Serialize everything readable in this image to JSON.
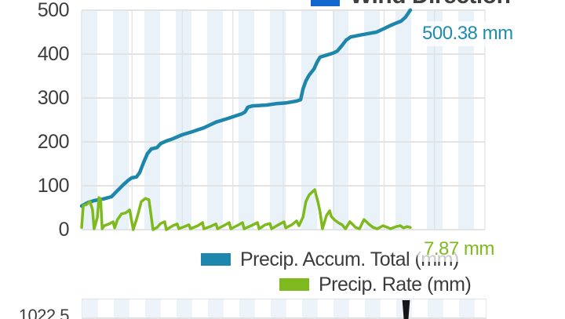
{
  "wind_legend": {
    "label": "Wind Direction",
    "swatch_color": "#1367cd"
  },
  "precip_chart": {
    "y_axis": {
      "labels": [
        "500",
        "400",
        "300",
        "200",
        "100",
        "0"
      ]
    },
    "annotations": {
      "accum_value": "500.38 mm",
      "rate_value": "7.87 mm"
    },
    "legend": [
      {
        "label": "Precip. Accum. Total (mm)",
        "color": "#1f87ad"
      },
      {
        "label": "Precip. Rate (mm)",
        "color": "#7eba1e"
      }
    ],
    "colors": {
      "accum_line": "#1e86aa",
      "rate_line": "#7eba1e",
      "accum_value_text": "#1e8cad",
      "rate_value_text": "#7eba1e",
      "band_stripe": "#e9f1f9",
      "h_gridline": "#e3e3e3",
      "v_gridline": "#dfe3e9"
    }
  },
  "pressure_chart": {
    "y_axis_label": "1022.5",
    "cursor_color": "#151515"
  },
  "chart_data": [
    {
      "type": "line",
      "title": "",
      "xlabel": "",
      "ylabel": "",
      "ylim": [
        0,
        500
      ],
      "y_ticks": [
        500,
        400,
        300,
        200,
        100,
        0
      ],
      "grid": true,
      "legend_position": "bottom",
      "x_axis_note": "time axis labels are cropped out of the screenshot; x given as fraction of plot width",
      "series": [
        {
          "name": "Precip. Accum. Total (mm)",
          "color": "#1e86aa",
          "stroke_width": 4.5,
          "axis": "left (0-500 mm)",
          "current_value_label": "500.38 mm",
          "points": [
            [
              0.0,
              54
            ],
            [
              0.016,
              62
            ],
            [
              0.031,
              66
            ],
            [
              0.054,
              70
            ],
            [
              0.074,
              75
            ],
            [
              0.089,
              89
            ],
            [
              0.103,
              102
            ],
            [
              0.115,
              112
            ],
            [
              0.124,
              118
            ],
            [
              0.136,
              120
            ],
            [
              0.144,
              130
            ],
            [
              0.154,
              154
            ],
            [
              0.163,
              173
            ],
            [
              0.173,
              184
            ],
            [
              0.187,
              187
            ],
            [
              0.196,
              196
            ],
            [
              0.21,
              202
            ],
            [
              0.226,
              207
            ],
            [
              0.249,
              216
            ],
            [
              0.274,
              223
            ],
            [
              0.303,
              232
            ],
            [
              0.333,
              245
            ],
            [
              0.358,
              252
            ],
            [
              0.381,
              259
            ],
            [
              0.397,
              264
            ],
            [
              0.405,
              268
            ],
            [
              0.412,
              279
            ],
            [
              0.424,
              282
            ],
            [
              0.459,
              284
            ],
            [
              0.482,
              287
            ],
            [
              0.508,
              289
            ],
            [
              0.533,
              293
            ],
            [
              0.543,
              296
            ],
            [
              0.549,
              321
            ],
            [
              0.556,
              339
            ],
            [
              0.564,
              352
            ],
            [
              0.576,
              366
            ],
            [
              0.584,
              382
            ],
            [
              0.591,
              393
            ],
            [
              0.605,
              397
            ],
            [
              0.623,
              402
            ],
            [
              0.634,
              407
            ],
            [
              0.646,
              420
            ],
            [
              0.656,
              432
            ],
            [
              0.667,
              439
            ],
            [
              0.689,
              443
            ],
            [
              0.712,
              447
            ],
            [
              0.731,
              450
            ],
            [
              0.747,
              457
            ],
            [
              0.763,
              464
            ],
            [
              0.778,
              470
            ],
            [
              0.792,
              475
            ],
            [
              0.803,
              484
            ],
            [
              0.811,
              495
            ],
            [
              0.815,
              500.38
            ]
          ]
        },
        {
          "name": "Precip. Rate (mm)",
          "color": "#7eba1e",
          "stroke_width": 3.5,
          "axis": "secondary (scale not shown); values below read against the left 0-500 axis as plotted",
          "current_value_label": "7.87 mm",
          "points": [
            [
              0.0,
              5
            ],
            [
              0.004,
              55
            ],
            [
              0.012,
              57
            ],
            [
              0.021,
              64
            ],
            [
              0.027,
              45
            ],
            [
              0.031,
              2
            ],
            [
              0.039,
              27
            ],
            [
              0.043,
              73
            ],
            [
              0.047,
              69
            ],
            [
              0.051,
              2
            ],
            [
              0.056,
              9
            ],
            [
              0.068,
              13
            ],
            [
              0.078,
              18
            ],
            [
              0.082,
              4
            ],
            [
              0.089,
              23
            ],
            [
              0.099,
              36
            ],
            [
              0.109,
              38
            ],
            [
              0.119,
              45
            ],
            [
              0.128,
              0
            ],
            [
              0.138,
              29
            ],
            [
              0.148,
              64
            ],
            [
              0.158,
              71
            ],
            [
              0.167,
              68
            ],
            [
              0.177,
              0
            ],
            [
              0.187,
              5
            ],
            [
              0.196,
              14
            ],
            [
              0.206,
              18
            ],
            [
              0.21,
              0
            ],
            [
              0.226,
              9
            ],
            [
              0.237,
              13
            ],
            [
              0.241,
              2
            ],
            [
              0.255,
              7
            ],
            [
              0.266,
              11
            ],
            [
              0.27,
              2
            ],
            [
              0.288,
              9
            ],
            [
              0.3,
              16
            ],
            [
              0.303,
              2
            ],
            [
              0.319,
              7
            ],
            [
              0.333,
              13
            ],
            [
              0.337,
              2
            ],
            [
              0.352,
              9
            ],
            [
              0.366,
              16
            ],
            [
              0.37,
              2
            ],
            [
              0.385,
              9
            ],
            [
              0.399,
              16
            ],
            [
              0.403,
              2
            ],
            [
              0.42,
              9
            ],
            [
              0.436,
              16
            ],
            [
              0.44,
              2
            ],
            [
              0.455,
              11
            ],
            [
              0.467,
              14
            ],
            [
              0.471,
              2
            ],
            [
              0.488,
              11
            ],
            [
              0.502,
              18
            ],
            [
              0.506,
              4
            ],
            [
              0.521,
              11
            ],
            [
              0.533,
              20
            ],
            [
              0.539,
              9
            ],
            [
              0.549,
              29
            ],
            [
              0.556,
              64
            ],
            [
              0.564,
              79
            ],
            [
              0.572,
              86
            ],
            [
              0.578,
              91
            ],
            [
              0.582,
              77
            ],
            [
              0.586,
              63
            ],
            [
              0.591,
              41
            ],
            [
              0.597,
              2
            ],
            [
              0.607,
              32
            ],
            [
              0.615,
              43
            ],
            [
              0.619,
              30
            ],
            [
              0.626,
              23
            ],
            [
              0.636,
              16
            ],
            [
              0.646,
              11
            ],
            [
              0.654,
              2
            ],
            [
              0.665,
              18
            ],
            [
              0.673,
              11
            ],
            [
              0.679,
              5
            ],
            [
              0.689,
              2
            ],
            [
              0.7,
              23
            ],
            [
              0.706,
              18
            ],
            [
              0.714,
              11
            ],
            [
              0.723,
              5
            ],
            [
              0.733,
              2
            ],
            [
              0.747,
              9
            ],
            [
              0.759,
              5
            ],
            [
              0.766,
              2
            ],
            [
              0.78,
              7
            ],
            [
              0.79,
              9
            ],
            [
              0.798,
              4
            ],
            [
              0.807,
              7
            ],
            [
              0.815,
              5
            ]
          ]
        }
      ]
    },
    {
      "type": "line",
      "title": "",
      "note": "second chart (pressure) almost entirely cropped at bottom edge; only the top sliver, one visible tick label and a black time-cursor bar are shown",
      "visible_y_tick_labels": [
        "1022.5"
      ],
      "series": []
    }
  ]
}
